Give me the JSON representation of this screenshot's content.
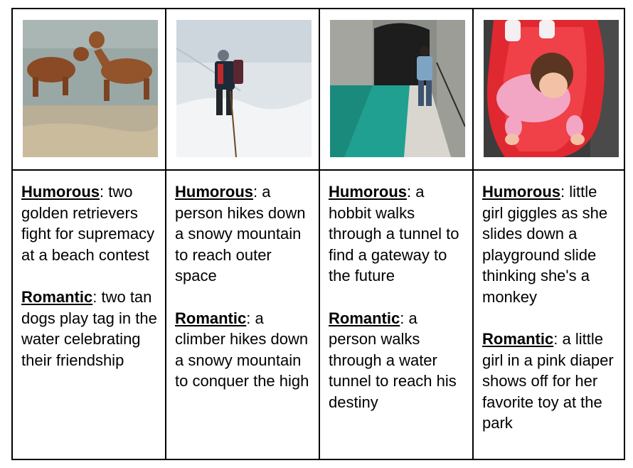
{
  "colors": {
    "border": "#000000",
    "water_beach": "#8fa7a8",
    "snow": "#e4e8ec",
    "tunnel_water": "#1f8b7c",
    "slide_red": "#e02830",
    "jacket_pink": "#f2a6c4"
  },
  "columns": [
    {
      "photo_subject": "dogs-in-water",
      "humorous_label": "Humorous",
      "humorous_text": ": two golden retrievers fight for supremacy at a beach contest",
      "romantic_label": "Romantic",
      "romantic_text": ": two tan dogs play tag in the water celebrating their friendship"
    },
    {
      "photo_subject": "snow-hiker",
      "humorous_label": "Humorous",
      "humorous_text": ": a person hikes down a snowy mountain to reach outer space",
      "romantic_label": "Romantic",
      "romantic_text": ": a climber hikes down a snowy mountain to conquer the high"
    },
    {
      "photo_subject": "tunnel-walker",
      "humorous_label": "Humorous",
      "humorous_text": ": a hobbit walks through a tunnel to find a gateway to the future",
      "romantic_label": "Romantic",
      "romantic_text": ": a person walks through a water tunnel to reach his destiny"
    },
    {
      "photo_subject": "girl-on-slide",
      "humorous_label": "Humorous",
      "humorous_text": ": little girl giggles as she slides down a playground slide thinking she's a monkey",
      "romantic_label": "Romantic",
      "romantic_text": ": a little girl in a pink diaper shows off for her favorite toy at the park"
    }
  ]
}
